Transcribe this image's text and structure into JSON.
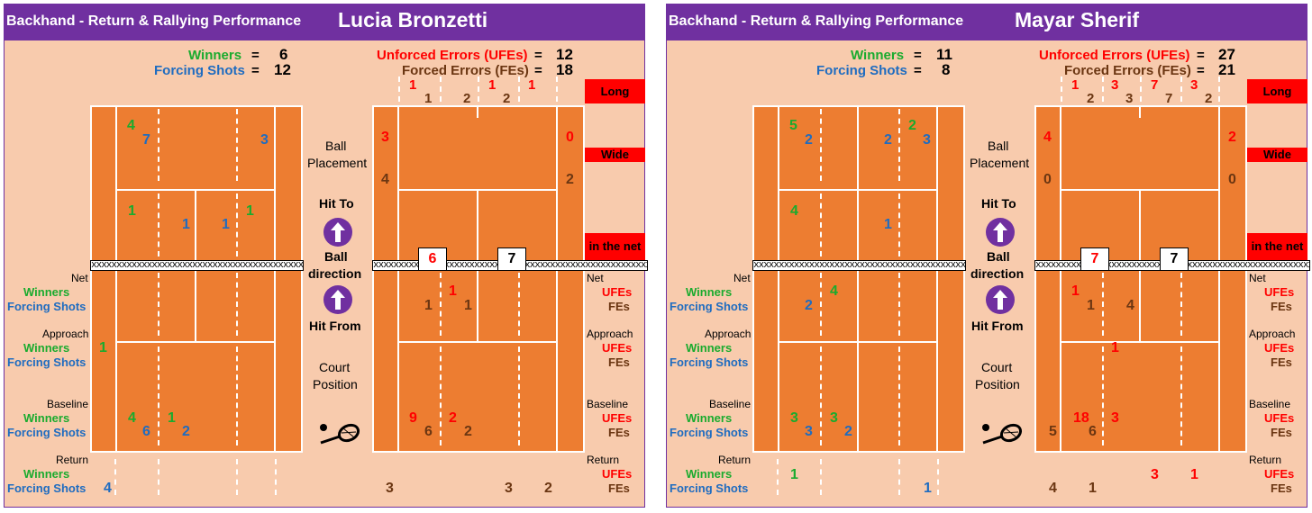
{
  "colors": {
    "header_bg": "#7030a0",
    "panel_bg": "#f8cbad",
    "court": "#ed7d31",
    "winners": "#1aab2e",
    "forcing": "#1f6cc0",
    "ufe": "#ff0000",
    "fe": "#6b3612"
  },
  "icons": {
    "arrow": "up-arrow-icon",
    "racket": "tennis-racket-icon"
  },
  "panels": [
    {
      "subtitle": "Backhand - Return & Rallying Performance",
      "player": "Lucia Bronzetti",
      "totals": {
        "winners_label": "Winners",
        "winners": "6",
        "forcing_label": "Forcing Shots",
        "forcing": "12",
        "ufe_label": "Unforced Errors (UFEs)",
        "ufe": "12",
        "fe_label": "Forced Errors (FEs)",
        "fe": "18",
        "eq": "="
      },
      "left_labels": {
        "net": "Net",
        "approach": "Approach",
        "baseline": "Baseline",
        "return": "Return",
        "winners": "Winners",
        "forcing": "Forcing Shots"
      },
      "right_labels": {
        "net": "Net",
        "approach": "Approach",
        "baseline": "Baseline",
        "return": "Return",
        "ufes": "UFEs",
        "fes": "FEs"
      },
      "center": {
        "ball": "Ball",
        "placement": "Placement",
        "hit_to": "Hit To",
        "ball2": "Ball",
        "direction": "direction",
        "hit_from": "Hit From",
        "court": "Court",
        "position": "Position"
      },
      "tags": {
        "long": "Long",
        "wide": "Wide",
        "net": "in the net"
      },
      "net_text": "xxxxxxxxxxxxxxxxxxxxxxxxxxxxxxxxxxxxxxxxxxxxxxxxxxxxxxxxxxxxxxxxxxxxxxxxxx",
      "left_vals": {
        "w_tl": "4",
        "f_tl": "7",
        "f_tr": "3",
        "w_sl": "1",
        "f_sl": "1",
        "f_sr": "1",
        "w_sr": "1",
        "w_app": "1",
        "w_bl1": "4",
        "w_bl2": "1",
        "f_bl1": "6",
        "f_bl2": "2",
        "f_ret": "4"
      },
      "right_vals": {
        "top_red": [
          "1",
          "",
          "1",
          "1"
        ],
        "top_brown": [
          "1",
          "2",
          "2",
          ""
        ],
        "long_l": "3",
        "long_r": "0",
        "wide_l": "4",
        "wide_r": "2",
        "net_l": "6",
        "net_r": "7",
        "net_red": "1",
        "net_brown1": "1",
        "net_brown2": "1",
        "bl_red1": "9",
        "bl_red2": "2",
        "bl_brown1": "6",
        "bl_brown2": "2",
        "ret1": "3",
        "ret2": "3",
        "ret3": "2"
      }
    },
    {
      "subtitle": "Backhand - Return & Rallying Performance",
      "player": "Mayar Sherif",
      "totals": {
        "winners_label": "Winners",
        "winners": "11",
        "forcing_label": "Forcing Shots",
        "forcing": "8",
        "ufe_label": "Unforced Errors (UFEs)",
        "ufe": "27",
        "fe_label": "Forced Errors (FEs)",
        "fe": "21",
        "eq": "="
      },
      "left_labels": {
        "net": "Net",
        "approach": "Approach",
        "baseline": "Baseline",
        "return": "Return",
        "winners": "Winners",
        "forcing": "Forcing Shots"
      },
      "right_labels": {
        "net": "Net",
        "approach": "Approach",
        "baseline": "Baseline",
        "return": "Return",
        "ufes": "UFEs",
        "fes": "FEs"
      },
      "center": {
        "ball": "Ball",
        "placement": "Placement",
        "hit_to": "Hit To",
        "ball2": "Ball",
        "direction": "direction",
        "hit_from": "Hit From",
        "court": "Court",
        "position": "Position"
      },
      "tags": {
        "long": "Long",
        "wide": "Wide",
        "net": "in the net"
      },
      "net_text": "xxxxxxxxxxxxxxxxxxxxxxxxxxxxxxxxxxxxxxxxxxxxxxxxxxxxxxxxxxxxxxxxxxxxxxxxxx",
      "left_vals": {
        "w_tl": "5",
        "f_tl": "2",
        "f_tr2": "2",
        "w_tr": "2",
        "f_tr": "3",
        "w_sl": "4",
        "f_sr": "1",
        "w_net": "4",
        "f_net": "2",
        "w_bl1": "3",
        "w_bl2": "3",
        "f_bl1": "3",
        "f_bl2": "2",
        "w_ret": "1",
        "f_ret": "1"
      },
      "right_vals": {
        "top_red": [
          "1",
          "3",
          "7",
          "3"
        ],
        "top_brown": [
          "2",
          "3",
          "7",
          "2"
        ],
        "long_l": "4",
        "long_r": "2",
        "wide_l": "0",
        "wide_r": "0",
        "net_l": "7",
        "net_r": "7",
        "net_red": "1",
        "net_brown1": "1",
        "net_brown2": "4",
        "app_red": "1",
        "bl_red1": "18",
        "bl_red2": "3",
        "bl_brown1": "5",
        "bl_brown2": "6",
        "ret_red1": "3",
        "ret_red2": "1",
        "ret_brown1": "4",
        "ret_brown2": "1"
      }
    }
  ]
}
